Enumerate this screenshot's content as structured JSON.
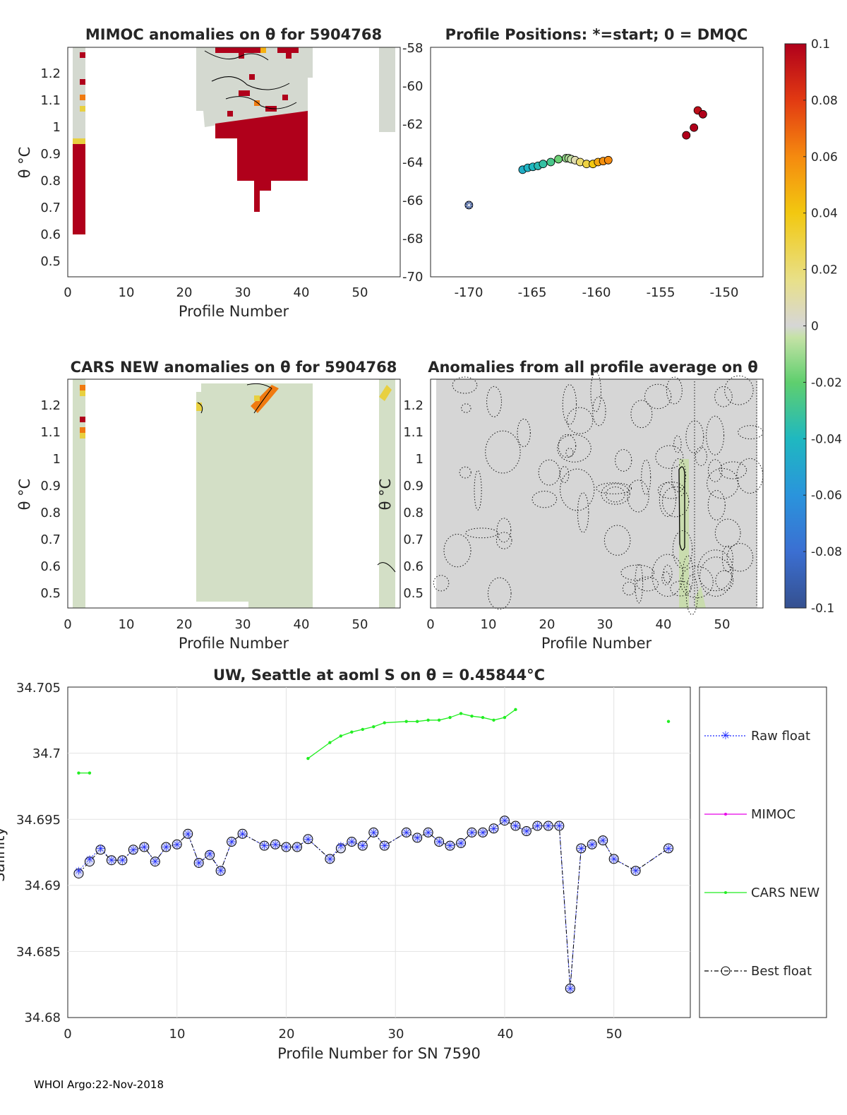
{
  "footer": "WHOI Argo:22-Nov-2018",
  "colors": {
    "raw_float": "#1f2bff",
    "mimoc": "#e800e8",
    "cars_new": "#22ee22",
    "best_float": "#000000",
    "neutral_fill": "#d4d9d0",
    "pale_green_fill": "#d3dfc6",
    "anomaly_high": "#b0001b"
  },
  "panels": {
    "mimoc": {
      "title": "MIMOC anomalies on θ  for 5904768",
      "xlabel": "Profile Number",
      "ylabel": "θ °C",
      "xticks": [
        "0",
        "10",
        "20",
        "30",
        "40",
        "50"
      ],
      "yticks": [
        "0.5",
        "0.6",
        "0.7",
        "0.8",
        "0.9",
        "1",
        "1.1",
        "1.2"
      ]
    },
    "positions": {
      "title": "Profile Positions: *=start; 0 = DMQC",
      "xticks": [
        "-170",
        "-165",
        "-160",
        "-155",
        "-150"
      ],
      "yticks": [
        "-58",
        "-60",
        "-62",
        "-64",
        "-66",
        "-68",
        "-70"
      ]
    },
    "cars": {
      "title": "CARS NEW anomalies on θ for 5904768",
      "xlabel": "Profile Number",
      "ylabel": "θ °C",
      "xticks": [
        "0",
        "10",
        "20",
        "30",
        "40",
        "50"
      ],
      "yticks": [
        "0.5",
        "0.6",
        "0.7",
        "0.8",
        "0.9",
        "1",
        "1.1",
        "1.2"
      ]
    },
    "allavg": {
      "title": "Anomalies from all profile average on θ",
      "xlabel": "Profile Number",
      "ylabel": "θ °C",
      "xticks": [
        "0",
        "10",
        "20",
        "30",
        "40",
        "50"
      ],
      "yticks": [
        "0.5",
        "0.6",
        "0.7",
        "0.8",
        "0.9",
        "1",
        "1.1",
        "1.2"
      ]
    },
    "colorbar": {
      "ticks": [
        "0.1",
        "0.08",
        "0.06",
        "0.04",
        "0.02",
        "0",
        "-0.02",
        "-0.04",
        "-0.06",
        "-0.08",
        "-0.1"
      ]
    },
    "salinity": {
      "title": "UW, Seattle at aoml S on θ = 0.45844°C",
      "xlabel": "Profile Number for SN 7590",
      "ylabel": "Salinity",
      "xticks": [
        "0",
        "10",
        "20",
        "30",
        "40",
        "50"
      ],
      "yticks": [
        "34.68",
        "34.685",
        "34.69",
        "34.695",
        "34.7",
        "34.705"
      ],
      "legend": [
        "Raw float",
        "MIMOC",
        "CARS NEW",
        "Best float"
      ]
    }
  },
  "chart_data": [
    {
      "type": "line",
      "title": "UW, Seattle at aoml S on θ = 0.45844°C",
      "xlabel": "Profile Number for SN 7590",
      "ylabel": "Salinity",
      "xlim": [
        0,
        57
      ],
      "ylim": [
        34.68,
        34.705
      ],
      "grid": true,
      "legend_position": "right-outside",
      "series": [
        {
          "name": "Raw float",
          "x": [
            1,
            2,
            3,
            4,
            5,
            6,
            7,
            8,
            9,
            10,
            11,
            12,
            13,
            14,
            15,
            16,
            18,
            19,
            20,
            21,
            22,
            24,
            25,
            26,
            27,
            28,
            29,
            31,
            32,
            33,
            34,
            35,
            36,
            37,
            38,
            39,
            40,
            41,
            42,
            43,
            44,
            45,
            46,
            47,
            48,
            49,
            50,
            52,
            55
          ],
          "y": [
            34.6911,
            34.692,
            34.6928,
            34.6919,
            34.6919,
            34.6927,
            34.6929,
            34.6918,
            34.6929,
            34.6931,
            34.6939,
            34.6917,
            34.6924,
            34.6911,
            34.6933,
            34.6939,
            34.693,
            34.6931,
            34.6929,
            34.6929,
            34.6935,
            34.692,
            34.693,
            34.6933,
            34.693,
            34.694,
            34.693,
            34.694,
            34.6936,
            34.694,
            34.6933,
            34.693,
            34.6932,
            34.694,
            34.694,
            34.6943,
            34.6949,
            34.6945,
            34.6941,
            34.6945,
            34.6945,
            34.6945,
            34.6822,
            34.6928,
            34.6931,
            34.6934,
            34.692,
            34.6911,
            34.6928
          ]
        },
        {
          "name": "MIMOC",
          "x": [],
          "y": []
        },
        {
          "name": "CARS NEW",
          "x": [
            1,
            2,
            22,
            24,
            25,
            26,
            27,
            28,
            29,
            31,
            32,
            33,
            34,
            35,
            36,
            37,
            38,
            39,
            40,
            41,
            55
          ],
          "y": [
            34.6985,
            34.6985,
            34.6996,
            34.7008,
            34.7013,
            34.7016,
            34.7018,
            34.702,
            34.7023,
            34.7024,
            34.7024,
            34.7025,
            34.7025,
            34.7027,
            34.703,
            34.7028,
            34.7027,
            34.7025,
            34.7027,
            34.7033,
            34.7024
          ]
        },
        {
          "name": "Best float",
          "x": [
            1,
            2,
            3,
            4,
            5,
            6,
            7,
            8,
            9,
            10,
            11,
            12,
            13,
            14,
            15,
            16,
            18,
            19,
            20,
            21,
            22,
            24,
            25,
            26,
            27,
            28,
            29,
            31,
            32,
            33,
            34,
            35,
            36,
            37,
            38,
            39,
            40,
            41,
            42,
            43,
            44,
            45,
            46,
            47,
            48,
            49,
            50,
            52,
            55
          ],
          "y": [
            34.6909,
            34.6918,
            34.6927,
            34.6919,
            34.6919,
            34.6927,
            34.6929,
            34.6918,
            34.6929,
            34.6931,
            34.6939,
            34.6917,
            34.6923,
            34.6911,
            34.6933,
            34.6939,
            34.693,
            34.6931,
            34.6929,
            34.6929,
            34.6935,
            34.692,
            34.6928,
            34.6933,
            34.693,
            34.694,
            34.693,
            34.694,
            34.6936,
            34.694,
            34.6933,
            34.693,
            34.6932,
            34.694,
            34.694,
            34.6943,
            34.6949,
            34.6945,
            34.6941,
            34.6945,
            34.6945,
            34.6945,
            34.6822,
            34.6928,
            34.6931,
            34.6934,
            34.692,
            34.6911,
            34.6928
          ]
        }
      ]
    },
    {
      "type": "scatter",
      "title": "Profile Positions: *=start; 0 = DMQC",
      "xlim": [
        -173,
        -147
      ],
      "ylim": [
        -70,
        -58
      ],
      "colorbar_range": [
        -0.1,
        0.1
      ],
      "start_point": {
        "lon": -170.0,
        "lat": -66.25,
        "value": -0.1
      },
      "points": [
        {
          "lon": -165.8,
          "lat": -64.4,
          "value": -0.045
        },
        {
          "lon": -165.4,
          "lat": -64.3,
          "value": -0.042
        },
        {
          "lon": -165.0,
          "lat": -64.25,
          "value": -0.04
        },
        {
          "lon": -164.6,
          "lat": -64.2,
          "value": -0.037
        },
        {
          "lon": -164.2,
          "lat": -64.1,
          "value": -0.033
        },
        {
          "lon": -163.6,
          "lat": -64.0,
          "value": -0.027
        },
        {
          "lon": -163.0,
          "lat": -63.85,
          "value": -0.018
        },
        {
          "lon": -162.4,
          "lat": -63.8,
          "value": -0.012
        },
        {
          "lon": -162.2,
          "lat": -63.8,
          "value": -0.008
        },
        {
          "lon": -162.0,
          "lat": -63.85,
          "value": -0.004
        },
        {
          "lon": -161.7,
          "lat": -63.9,
          "value": 0.008
        },
        {
          "lon": -161.3,
          "lat": -64.0,
          "value": 0.022
        },
        {
          "lon": -160.8,
          "lat": -64.1,
          "value": 0.03
        },
        {
          "lon": -160.3,
          "lat": -64.1,
          "value": 0.04
        },
        {
          "lon": -159.9,
          "lat": -64.0,
          "value": 0.05
        },
        {
          "lon": -159.5,
          "lat": -63.95,
          "value": 0.058
        },
        {
          "lon": -159.1,
          "lat": -63.9,
          "value": 0.06
        },
        {
          "lon": -153.0,
          "lat": -62.6,
          "value": 0.1
        },
        {
          "lon": -152.4,
          "lat": -62.2,
          "value": 0.1
        },
        {
          "lon": -152.1,
          "lat": -61.3,
          "value": 0.095
        },
        {
          "lon": -151.7,
          "lat": -61.5,
          "value": 0.1
        }
      ]
    },
    {
      "type": "heatmap",
      "title": "MIMOC anomalies on θ  for 5904768",
      "xlabel": "Profile Number",
      "ylabel": "θ °C",
      "xlim": [
        0,
        57
      ],
      "ylim": [
        0.43,
        1.29
      ],
      "colorbar_range": [
        -0.1,
        0.1
      ],
      "regions": [
        {
          "profiles": [
            1,
            2
          ],
          "theta_range": [
            0.6,
            1.29
          ],
          "values": "mostly +0.1 below 0.94, mixed above"
        },
        {
          "profiles": [
            22,
            42
          ],
          "theta_range": [
            0.68,
            1.29
          ],
          "values": "near 0 above 1.0, +0.1 below 1.0"
        },
        {
          "profiles": [
            53,
            55
          ],
          "theta_range": [
            0.98,
            1.29
          ],
          "values": "near 0"
        }
      ]
    },
    {
      "type": "heatmap",
      "title": "CARS NEW anomalies on θ for 5904768",
      "xlabel": "Profile Number",
      "ylabel": "θ °C",
      "xlim": [
        0,
        57
      ],
      "ylim": [
        0.43,
        1.29
      ],
      "colorbar_range": [
        -0.1,
        0.1
      ],
      "regions": [
        {
          "profiles": [
            1,
            2
          ],
          "theta_range": [
            0.43,
            1.29
          ],
          "values": "near -0.005 with +0.1 patches above 1.08"
        },
        {
          "profiles": [
            22,
            42
          ],
          "theta_range": [
            0.46,
            1.29
          ],
          "values": "near -0.006"
        },
        {
          "profiles": [
            53,
            55
          ],
          "theta_range": [
            0.43,
            1.29
          ],
          "values": "near -0.008"
        }
      ]
    },
    {
      "type": "heatmap",
      "title": "Anomalies from all profile average on θ",
      "xlabel": "Profile Number",
      "ylabel": "θ °C",
      "xlim": [
        0,
        57
      ],
      "ylim": [
        0.43,
        1.29
      ],
      "colorbar_range": [
        -0.1,
        0.1
      ],
      "regions": [
        {
          "profiles": [
            1,
            56
          ],
          "theta_range": [
            0.43,
            1.29
          ],
          "values": "near 0 everywhere, slightly negative near profile 43-46"
        }
      ]
    }
  ]
}
